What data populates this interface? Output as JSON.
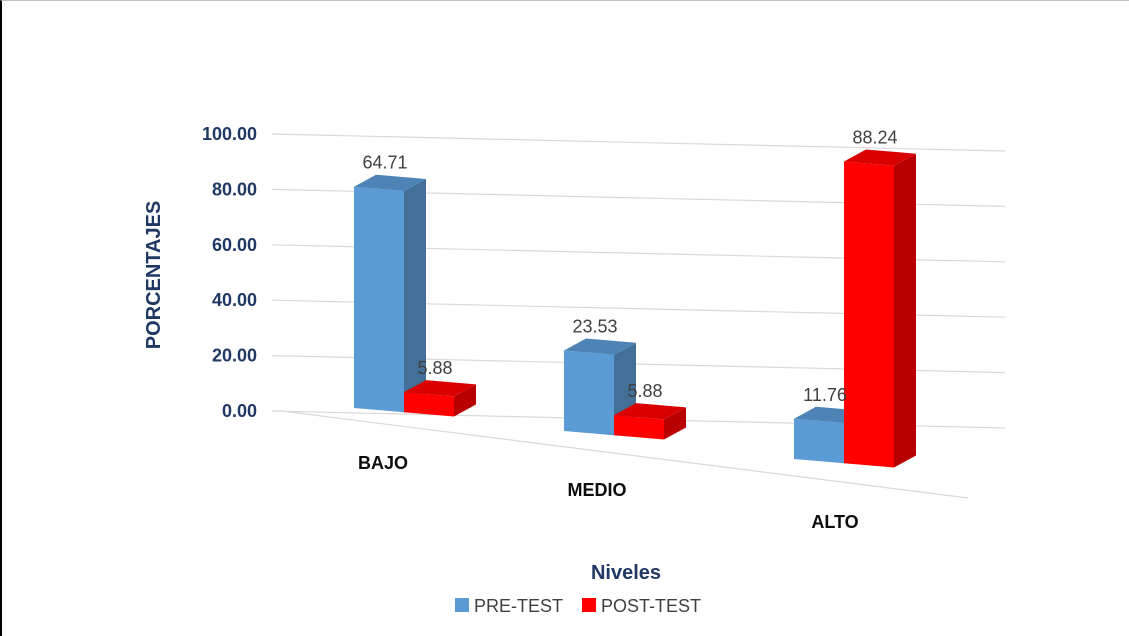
{
  "chart_data": {
    "type": "bar",
    "title": "",
    "xlabel": "Niveles",
    "ylabel": "PORCENTAJES",
    "categories": [
      "BAJO",
      "MEDIO",
      "ALTO"
    ],
    "series": [
      {
        "name": "PRE-TEST",
        "values": [
          64.71,
          23.53,
          11.76
        ],
        "value_labels": [
          "64.71",
          "23.53",
          "11.76"
        ],
        "color": "#5b9bd5"
      },
      {
        "name": "POST-TEST",
        "values": [
          5.88,
          5.88,
          88.24
        ],
        "value_labels": [
          "5.88",
          "5.88",
          "88.24"
        ],
        "color": "#ff0000"
      }
    ],
    "ylim": [
      0,
      100
    ],
    "yticks": [
      "0.00",
      "20.00",
      "40.00",
      "60.00",
      "80.00",
      "100.00"
    ],
    "grid": true,
    "legend": "bottom",
    "style": "3d-clustered-column"
  }
}
